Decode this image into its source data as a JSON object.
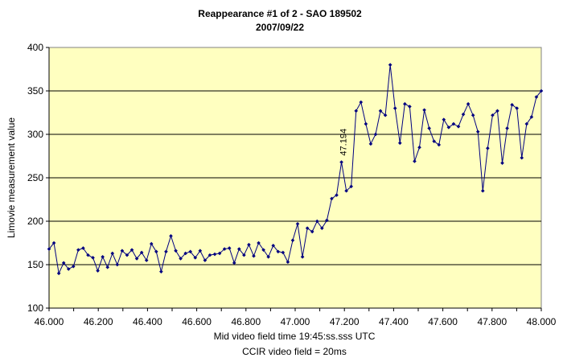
{
  "chart_data": {
    "type": "line",
    "title": "Reappearance #1 of 2 - SAO 189502",
    "subtitle": "2007/09/22",
    "xlabel": "Mid video field time 19:45:ss.sss UTC",
    "xlabel2": "CCIR video field = 20ms",
    "ylabel": "Limovie measurement value",
    "xlim": [
      46.0,
      48.0
    ],
    "ylim": [
      100,
      400
    ],
    "x_ticks": [
      "46.000",
      "46.200",
      "46.400",
      "46.600",
      "46.800",
      "47.000",
      "47.200",
      "47.400",
      "47.600",
      "47.800",
      "48.000"
    ],
    "y_ticks": [
      "100",
      "150",
      "200",
      "250",
      "300",
      "350",
      "400"
    ],
    "grid": "horizontal",
    "plot_background": "#ffffc0",
    "series_color": "#000080",
    "annotation": {
      "text": "47.194",
      "x": 47.194,
      "y": 268
    },
    "series": [
      {
        "values": [
          168,
          175,
          140,
          152,
          145,
          148,
          167,
          169,
          161,
          158,
          143,
          159,
          147,
          163,
          150,
          166,
          161,
          167,
          157,
          164,
          155,
          174,
          165,
          142,
          165,
          183,
          166,
          157,
          163,
          165,
          158,
          166,
          155,
          161,
          162,
          163,
          168,
          169,
          152,
          168,
          161,
          173,
          160,
          175,
          167,
          159,
          172,
          165,
          164,
          153,
          178,
          197,
          159,
          192,
          188,
          200,
          192,
          201,
          226,
          230,
          268,
          235,
          240,
          327,
          337,
          312,
          289,
          300,
          327,
          322,
          380,
          330,
          290,
          335,
          332,
          269,
          285,
          328,
          307,
          292,
          288,
          317,
          308,
          312,
          309,
          323,
          335,
          322,
          303,
          235,
          284,
          322,
          327,
          267,
          307,
          334,
          330,
          273,
          312,
          320,
          343,
          350
        ]
      }
    ]
  }
}
